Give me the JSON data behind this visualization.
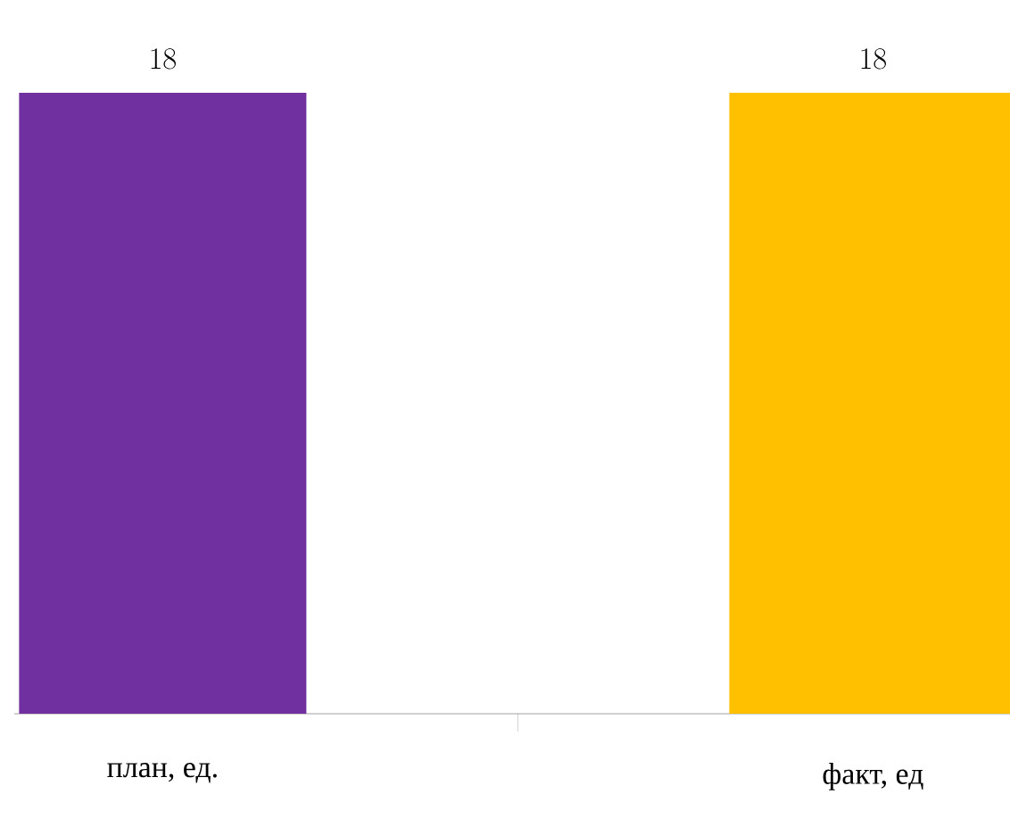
{
  "chart_data": {
    "type": "bar",
    "categories": [
      "план, ед.",
      "факт, ед"
    ],
    "values": [
      18,
      18
    ],
    "colors": [
      "#7030a0",
      "#ffc000"
    ],
    "data_labels": true
  }
}
